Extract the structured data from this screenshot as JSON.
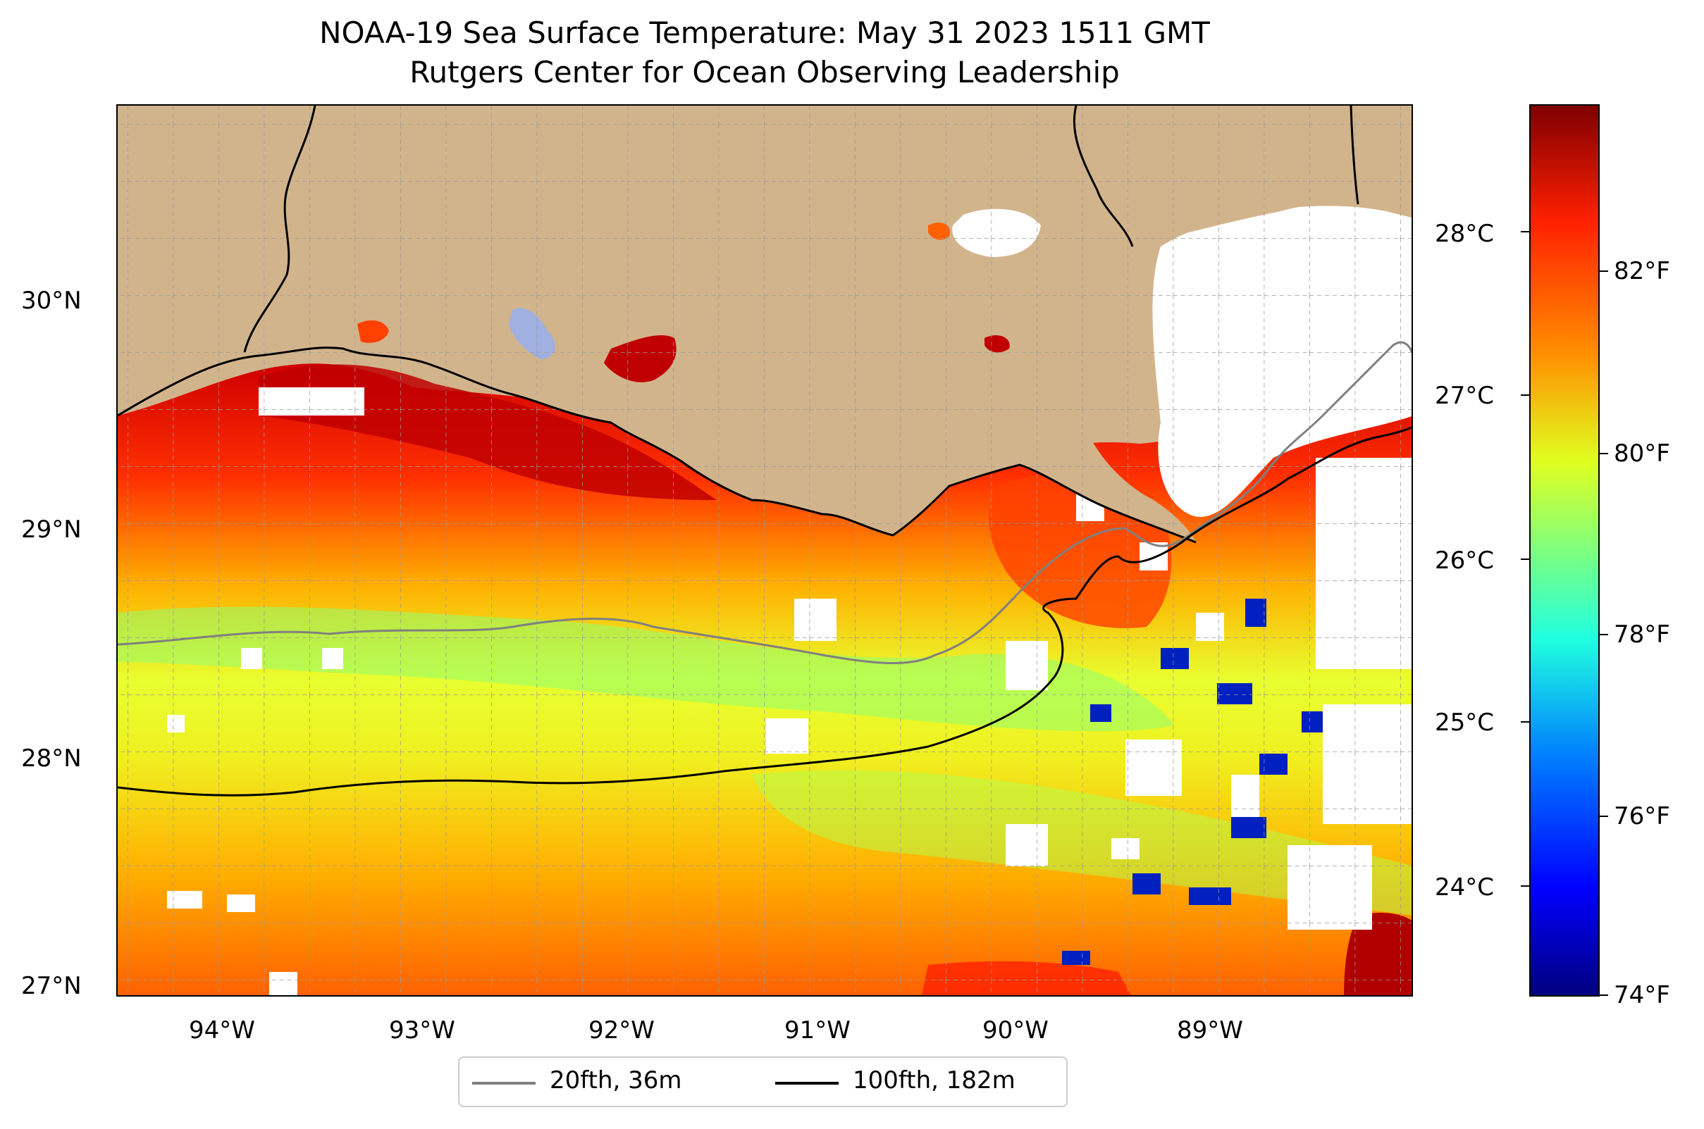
{
  "title": {
    "line1": "NOAA-19 Sea Surface Temperature: May 31 2023 1511 GMT",
    "line2": "Rutgers Center for Ocean Observing Leadership"
  },
  "axes": {
    "lon_labels": [
      "94°W",
      "93°W",
      "92°W",
      "91°W",
      "90°W",
      "89°W"
    ],
    "lat_labels": [
      "30°N",
      "29°N",
      "28°N",
      "27°N"
    ]
  },
  "colorbar": {
    "celsius_labels": [
      "28°C",
      "27°C",
      "26°C",
      "25°C",
      "24°C"
    ],
    "fahrenheit_labels": [
      "82°F",
      "80°F",
      "78°F",
      "76°F",
      "74°F"
    ]
  },
  "legend": {
    "items": [
      {
        "label": "20fth, 36m",
        "color": "#808080"
      },
      {
        "label": "100fth, 182m",
        "color": "#000000"
      }
    ]
  },
  "colors": {
    "land": "#d2b48c",
    "warm": "#ff2000",
    "hot": "#c00000",
    "mid": "#ffd000",
    "cool": "#80ff80",
    "cold": "#0020c0",
    "cloud": "#ffffff"
  }
}
